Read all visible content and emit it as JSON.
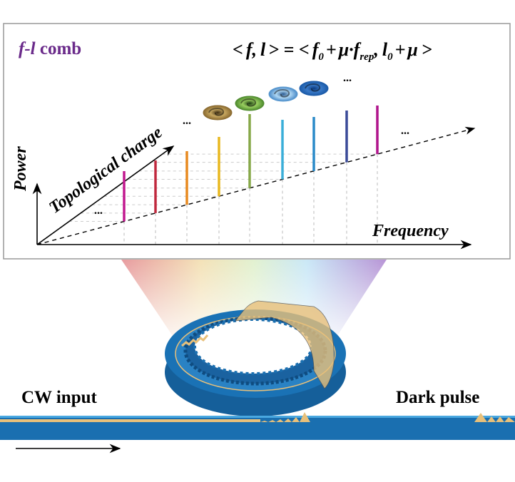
{
  "panel": {
    "comb_label_italic": "f-l",
    "comb_label_rest": " comb",
    "equation": "< f, l > = < f₀ + μ·f_rep, l₀ + μ >",
    "eq_parts": {
      "a": "<",
      "f": "f",
      "comma1": ",",
      "l": "l",
      "b": "> = <",
      "f0": "f",
      "sub0": "0",
      "plus1": "+",
      "mu1": "μ·",
      "frep": "f",
      "subrep": "rep",
      "comma2": ",",
      "l0": "l",
      "subl0": "0",
      "plus2": "+",
      "mu2": "μ",
      "c": ">"
    },
    "axis_power": "Power",
    "axis_topological": "Topological charge",
    "axis_frequency": "Frequency",
    "ellipsis": "...",
    "comb_line_colors": [
      "#c2188f",
      "#c0283e",
      "#e88a20",
      "#e8b820",
      "#86a848",
      "#3aaed8",
      "#2a8ac8",
      "#3a4a98",
      "#b0148c"
    ],
    "vortex_colors": [
      "#8a6a30",
      "#4e8a2e",
      "#5a9ad0",
      "#1a5aa8"
    ],
    "comb_label_color": "#6a2a8a"
  },
  "device": {
    "input_label": "CW input",
    "output_label": "Dark pulse",
    "waveguide_color": "#1a6fb0",
    "field_color": "#e8c07a"
  }
}
